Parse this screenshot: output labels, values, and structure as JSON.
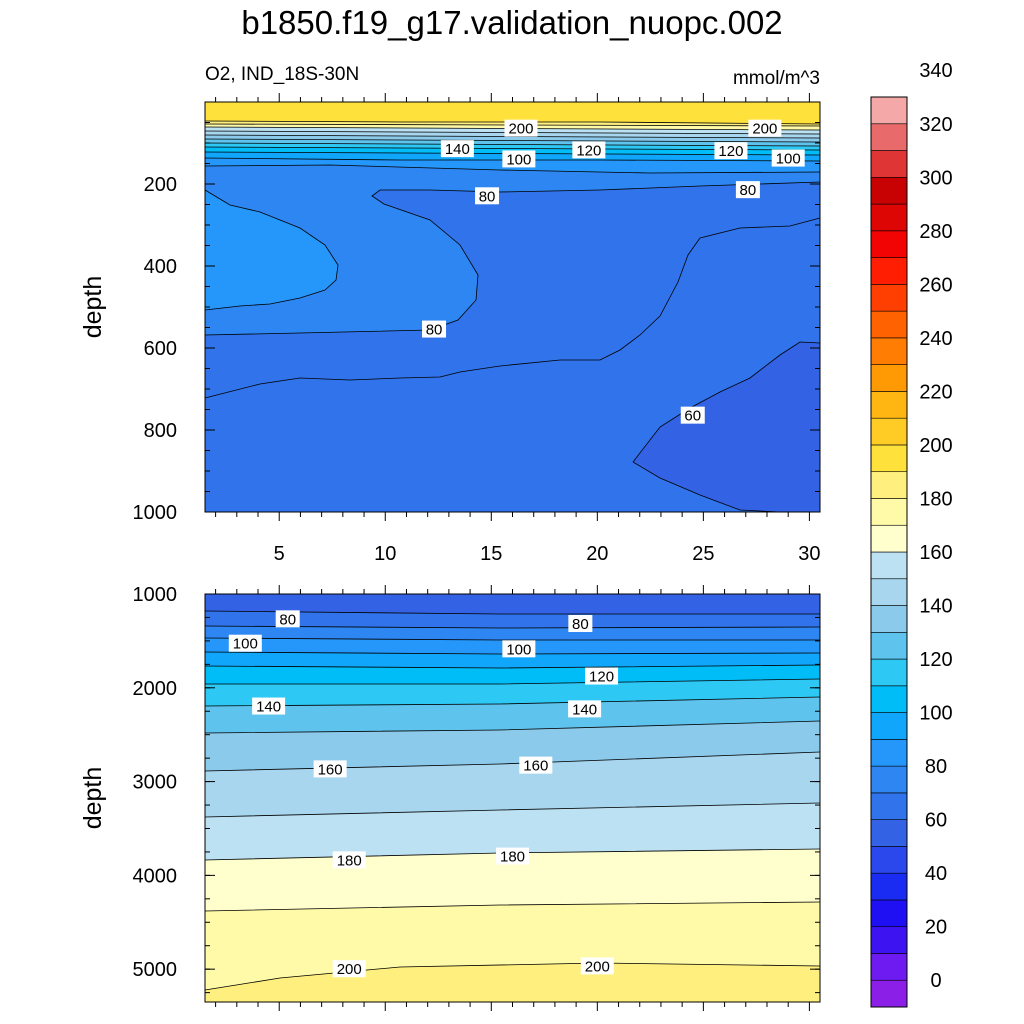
{
  "header": {
    "title": "b1850.f19_g17.validation_nuopc.002",
    "subtitle_left": "O2, IND_18S-30N",
    "subtitle_right": "mmol/m^3"
  },
  "colors": {
    "fill_levels": [
      "#8B1FE8",
      "#6D1BF0",
      "#3E13F2",
      "#1E10F3",
      "#1A2BF2",
      "#2A48EC",
      "#3363E4",
      "#3173EA",
      "#2E86F2",
      "#2596FA",
      "#10A6FB",
      "#00BDF8",
      "#2DC8F4",
      "#5EC4EE",
      "#8CCAEB",
      "#A8D6EF",
      "#BCE1F3",
      "#FFFFCE",
      "#FFFAA8",
      "#FFEF7E",
      "#FFE13C",
      "#FFCC25",
      "#FFB612",
      "#FF9A05",
      "#FF7D02",
      "#FF6200",
      "#FF3F01",
      "#FF1E02",
      "#F30404",
      "#DE0505",
      "#C80203",
      "#DF3535",
      "#E96A6A",
      "#F5A8A8"
    ],
    "line": "#000000"
  },
  "chart_data": [
    {
      "type": "contour",
      "panel": "upper",
      "ylabel": "depth",
      "x_ticks": [
        5,
        10,
        15,
        20,
        25,
        30
      ],
      "y_ticks": [
        200,
        400,
        600,
        800,
        1000
      ],
      "xlim": [
        1.5,
        30.5
      ],
      "ylim": [
        1000,
        0
      ],
      "contour_labels": [
        {
          "value": "200",
          "x": 16.4,
          "depth": 65
        },
        {
          "value": "200",
          "x": 27.9,
          "depth": 65
        },
        {
          "value": "140",
          "x": 13.4,
          "depth": 115
        },
        {
          "value": "120",
          "x": 19.6,
          "depth": 118
        },
        {
          "value": "120",
          "x": 26.3,
          "depth": 120
        },
        {
          "value": "100",
          "x": 16.3,
          "depth": 140
        },
        {
          "value": "100",
          "x": 29.0,
          "depth": 138
        },
        {
          "value": "80",
          "x": 14.8,
          "depth": 230
        },
        {
          "value": "80",
          "x": 27.1,
          "depth": 215
        },
        {
          "value": "80",
          "x": 12.3,
          "depth": 555
        },
        {
          "value": "60",
          "x": 24.5,
          "depth": 765
        }
      ]
    },
    {
      "type": "contour",
      "panel": "lower",
      "ylabel": "depth",
      "x_ticks": [],
      "y_ticks": [
        1000,
        2000,
        3000,
        4000,
        5000
      ],
      "xlim": [
        1.5,
        30.5
      ],
      "ylim": [
        5350,
        1000
      ],
      "contour_labels": [
        {
          "value": "80",
          "x": 5.4,
          "depth": 1270
        },
        {
          "value": "80",
          "x": 19.2,
          "depth": 1320
        },
        {
          "value": "100",
          "x": 3.4,
          "depth": 1530
        },
        {
          "value": "100",
          "x": 16.3,
          "depth": 1590
        },
        {
          "value": "120",
          "x": 20.2,
          "depth": 1880
        },
        {
          "value": "140",
          "x": 4.5,
          "depth": 2200
        },
        {
          "value": "140",
          "x": 19.4,
          "depth": 2230
        },
        {
          "value": "160",
          "x": 7.4,
          "depth": 2870
        },
        {
          "value": "160",
          "x": 17.1,
          "depth": 2830
        },
        {
          "value": "180",
          "x": 8.3,
          "depth": 3840
        },
        {
          "value": "180",
          "x": 16.0,
          "depth": 3800
        },
        {
          "value": "200",
          "x": 8.3,
          "depth": 5000
        },
        {
          "value": "200",
          "x": 20.0,
          "depth": 4970
        }
      ]
    },
    {
      "type": "colorbar",
      "tick_labels": [
        "0",
        "20",
        "40",
        "60",
        "80",
        "100",
        "120",
        "140",
        "160",
        "180",
        "200",
        "220",
        "240",
        "260",
        "280",
        "300",
        "320",
        "340"
      ]
    }
  ]
}
